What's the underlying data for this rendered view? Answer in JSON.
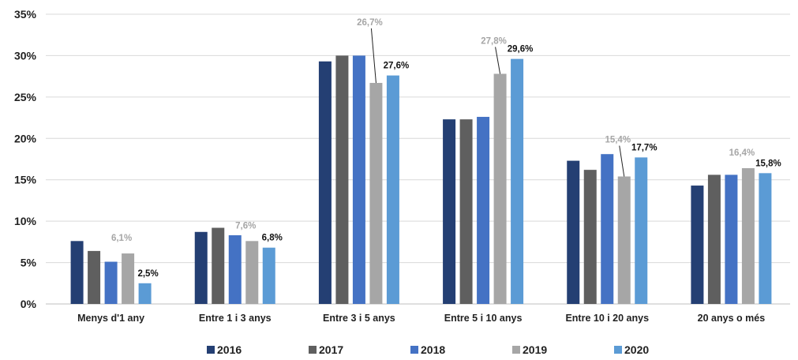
{
  "chart_data": {
    "type": "bar",
    "title": "",
    "xlabel": "",
    "ylabel": "",
    "ylim": [
      0,
      35
    ],
    "yticks": [
      "0%",
      "5%",
      "10%",
      "15%",
      "20%",
      "25%",
      "30%",
      "35%"
    ],
    "grid": true,
    "legend_position": "bottom",
    "categories": [
      "Menys d'1 any",
      "Entre 1 i 3 anys",
      "Entre 3 i 5 anys",
      "Entre 5 i 10 anys",
      "Entre 10 i 20 anys",
      "20 anys o més"
    ],
    "series": [
      {
        "name": "2016",
        "color": "#243f73",
        "values": [
          7.6,
          8.7,
          29.3,
          22.3,
          17.3,
          14.3
        ]
      },
      {
        "name": "2017",
        "color": "#5f5f5f",
        "values": [
          6.4,
          9.2,
          30.0,
          22.3,
          16.2,
          15.6
        ]
      },
      {
        "name": "2018",
        "color": "#4472c4",
        "values": [
          5.1,
          8.3,
          30.0,
          22.6,
          18.1,
          15.6
        ]
      },
      {
        "name": "2019",
        "color": "#a6a6a6",
        "values": [
          6.1,
          7.6,
          26.7,
          27.8,
          15.4,
          16.4
        ]
      },
      {
        "name": "2020",
        "color": "#5b9bd5",
        "values": [
          2.5,
          6.8,
          27.6,
          29.6,
          17.7,
          15.8
        ]
      }
    ],
    "data_labels": {
      "2019": [
        "6,1%",
        "7,6%",
        "26,7%",
        "27,8%",
        "15,4%",
        "16,4%"
      ],
      "2020": [
        "2,5%",
        "6,8%",
        "27,6%",
        "29,6%",
        "17,7%",
        "15,8%"
      ]
    },
    "label_colors": {
      "2019": "#a6a6a6",
      "2020": "#111111"
    }
  }
}
